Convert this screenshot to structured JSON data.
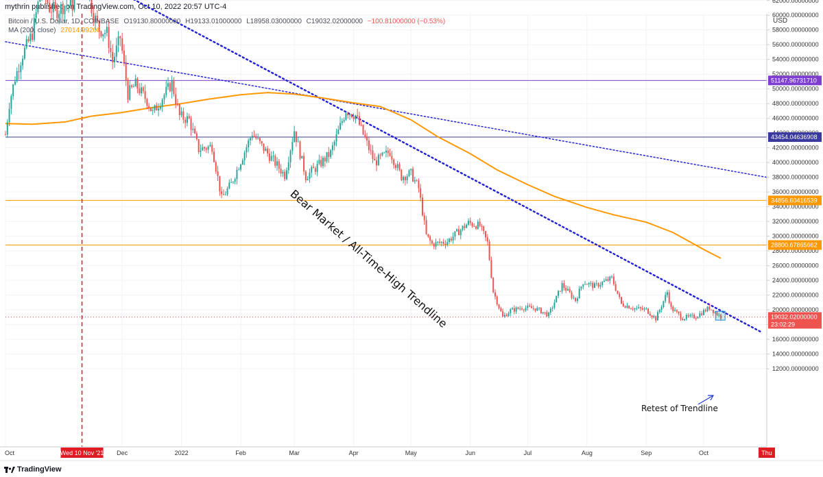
{
  "header": {
    "published_by": "mythrin published on TradingView.com, Oct 10, 2022 20:57 UTC-4"
  },
  "legend": {
    "symbol": "Bitcoin / U.S. Dollar, 1D, COINBASE",
    "open": "O19130.80000000",
    "high": "H19133.01000000",
    "low": "L18958.03000000",
    "close": "C19032.02000000",
    "change": "−100.81000000 (−0.53%)",
    "ma_label": "MA (200, close)",
    "ma_value": "27014.99208"
  },
  "axis": {
    "unit": "USD"
  },
  "footer": {
    "brand": "TradingView"
  },
  "annotations": {
    "bear_trendline": "Bear Market / All-Time-High Trendline",
    "retest": "Retest of Trendline"
  },
  "colors": {
    "up": "#26a69a",
    "down": "#ef5350",
    "ma": "#ff9800",
    "trendline": "#2424d6",
    "purple_level": "#7e3fd0",
    "navy_level": "#3a3a9e",
    "orange_level": "#ff9800",
    "red_marker": "#e01b24",
    "last_price": "#ef5350"
  },
  "chart_data": {
    "type": "candlestick",
    "title": "Bitcoin / U.S. Dollar, 1D, COINBASE",
    "ylabel": "USD",
    "ylim": [
      12000,
      69000
    ],
    "y_ticks": [
      "12000.00000000",
      "14000.00000000",
      "16000.00000000",
      "18000.00000000",
      "20000.00000000",
      "22000.00000000",
      "24000.00000000",
      "26000.00000000",
      "28000.00000000",
      "30000.00000000",
      "32000.00000000",
      "34000.00000000",
      "36000.00000000",
      "38000.00000000",
      "40000.00000000",
      "42000.00000000",
      "44000.00000000",
      "46000.00000000",
      "48000.00000000",
      "50000.00000000",
      "52000.00000000",
      "54000.00000000",
      "56000.00000000",
      "58000.00000000",
      "60000.00000000",
      "62000.00000000",
      "64000.00000000",
      "66000.00000000",
      "68000.00000000"
    ],
    "x_ticks": [
      {
        "date": "2021-10-01",
        "label": "Oct"
      },
      {
        "date": "2021-12-01",
        "label": "Dec"
      },
      {
        "date": "2022-01-01",
        "label": "2022"
      },
      {
        "date": "2022-02-01",
        "label": "Feb"
      },
      {
        "date": "2022-03-01",
        "label": "Mar"
      },
      {
        "date": "2022-04-01",
        "label": "Apr"
      },
      {
        "date": "2022-05-01",
        "label": "May"
      },
      {
        "date": "2022-06-01",
        "label": "Jun"
      },
      {
        "date": "2022-07-01",
        "label": "Jul"
      },
      {
        "date": "2022-08-01",
        "label": "Aug"
      },
      {
        "date": "2022-09-01",
        "label": "Sep"
      },
      {
        "date": "2022-10-01",
        "label": "Oct"
      },
      {
        "date": "2022-11-03",
        "label": "Thu",
        "highlight": true
      }
    ],
    "marker": {
      "date": "2021-11-10",
      "label": "Wed 10 Nov '21"
    },
    "levels": [
      {
        "value": 51147.9673171,
        "label": "51147.96731710",
        "color": "#7e3fd0"
      },
      {
        "value": 43454.04636908,
        "label": "43454.04636908",
        "color": "#3a3a9e"
      },
      {
        "value": 34856.60416539,
        "label": "34856.60416539",
        "color": "#ff9800"
      },
      {
        "value": 28800.67865662,
        "label": "28800.67865662",
        "color": "#ff9800"
      }
    ],
    "last_price": {
      "value": 19032.02,
      "label": "19032.02000000",
      "countdown": "23:02:29"
    },
    "trendlines": [
      {
        "name": "Bear Market / All-Time-High Trendline",
        "points": [
          [
            "2021-10-11",
            70000
          ],
          [
            "2022-10-31",
            17000
          ]
        ]
      },
      {
        "points": [
          [
            "2021-10-01",
            56400
          ],
          [
            "2022-11-03",
            38000
          ]
        ]
      }
    ],
    "ma200": [
      [
        "2021-10-01",
        45300
      ],
      [
        "2021-10-15",
        45200
      ],
      [
        "2021-11-01",
        45500
      ],
      [
        "2021-11-15",
        46300
      ],
      [
        "2021-12-01",
        46800
      ],
      [
        "2021-12-15",
        47400
      ],
      [
        "2022-01-01",
        48000
      ],
      [
        "2022-01-15",
        48600
      ],
      [
        "2022-02-01",
        49200
      ],
      [
        "2022-02-15",
        49500
      ],
      [
        "2022-03-01",
        49300
      ],
      [
        "2022-03-15",
        48800
      ],
      [
        "2022-04-01",
        48100
      ],
      [
        "2022-04-15",
        47600
      ],
      [
        "2022-05-01",
        45800
      ],
      [
        "2022-05-15",
        43500
      ],
      [
        "2022-06-01",
        41200
      ],
      [
        "2022-06-15",
        39000
      ],
      [
        "2022-07-01",
        37000
      ],
      [
        "2022-07-15",
        35400
      ],
      [
        "2022-08-01",
        33900
      ],
      [
        "2022-08-15",
        32900
      ],
      [
        "2022-09-01",
        31900
      ],
      [
        "2022-09-15",
        30500
      ],
      [
        "2022-10-01",
        28200
      ],
      [
        "2022-10-10",
        27000
      ]
    ],
    "close_path": [
      [
        "2021-10-01",
        43800
      ],
      [
        "2021-10-03",
        48000
      ],
      [
        "2021-10-06",
        51500
      ],
      [
        "2021-10-10",
        54700
      ],
      [
        "2021-10-15",
        57500
      ],
      [
        "2021-10-20",
        64200
      ],
      [
        "2021-10-24",
        61000
      ],
      [
        "2021-10-28",
        60600
      ],
      [
        "2021-11-01",
        61400
      ],
      [
        "2021-11-05",
        61400
      ],
      [
        "2021-11-08",
        67500
      ],
      [
        "2021-11-10",
        64900
      ],
      [
        "2021-11-12",
        64200
      ],
      [
        "2021-11-16",
        60100
      ],
      [
        "2021-11-19",
        58100
      ],
      [
        "2021-11-23",
        57600
      ],
      [
        "2021-11-26",
        53700
      ],
      [
        "2021-11-30",
        57000
      ],
      [
        "2021-12-04",
        49300
      ],
      [
        "2021-12-08",
        50600
      ],
      [
        "2021-12-14",
        48400
      ],
      [
        "2021-12-17",
        46700
      ],
      [
        "2021-12-22",
        48800
      ],
      [
        "2021-12-27",
        50800
      ],
      [
        "2021-12-31",
        46300
      ],
      [
        "2022-01-05",
        45800
      ],
      [
        "2022-01-10",
        41800
      ],
      [
        "2022-01-17",
        42200
      ],
      [
        "2022-01-22",
        35100
      ],
      [
        "2022-01-27",
        37100
      ],
      [
        "2022-02-07",
        44000
      ],
      [
        "2022-02-12",
        42200
      ],
      [
        "2022-02-17",
        40600
      ],
      [
        "2022-02-24",
        38300
      ],
      [
        "2022-03-01",
        44400
      ],
      [
        "2022-03-07",
        38100
      ],
      [
        "2022-03-14",
        39700
      ],
      [
        "2022-03-20",
        41300
      ],
      [
        "2022-03-28",
        47100
      ],
      [
        "2022-04-02",
        46400
      ],
      [
        "2022-04-07",
        43200
      ],
      [
        "2022-04-12",
        40000
      ],
      [
        "2022-04-20",
        41500
      ],
      [
        "2022-04-26",
        38100
      ],
      [
        "2022-05-01",
        38500
      ],
      [
        "2022-05-05",
        36500
      ],
      [
        "2022-05-09",
        30100
      ],
      [
        "2022-05-12",
        28900
      ],
      [
        "2022-05-20",
        29300
      ],
      [
        "2022-05-31",
        31800
      ],
      [
        "2022-06-06",
        31400
      ],
      [
        "2022-06-10",
        29100
      ],
      [
        "2022-06-13",
        22500
      ],
      [
        "2022-06-18",
        19000
      ],
      [
        "2022-06-22",
        19900
      ],
      [
        "2022-06-28",
        20300
      ],
      [
        "2022-07-05",
        20200
      ],
      [
        "2022-07-12",
        19300
      ],
      [
        "2022-07-19",
        23400
      ],
      [
        "2022-07-26",
        21300
      ],
      [
        "2022-07-30",
        23800
      ],
      [
        "2022-08-05",
        23200
      ],
      [
        "2022-08-14",
        24300
      ],
      [
        "2022-08-19",
        20800
      ],
      [
        "2022-08-26",
        20200
      ],
      [
        "2022-09-01",
        20000
      ],
      [
        "2022-09-06",
        18800
      ],
      [
        "2022-09-12",
        22400
      ],
      [
        "2022-09-14",
        20200
      ],
      [
        "2022-09-20",
        18900
      ],
      [
        "2022-09-27",
        19100
      ],
      [
        "2022-10-04",
        20300
      ],
      [
        "2022-10-10",
        19032
      ]
    ],
    "candle_range": [
      "2021-10-01",
      "2022-10-10"
    ]
  }
}
